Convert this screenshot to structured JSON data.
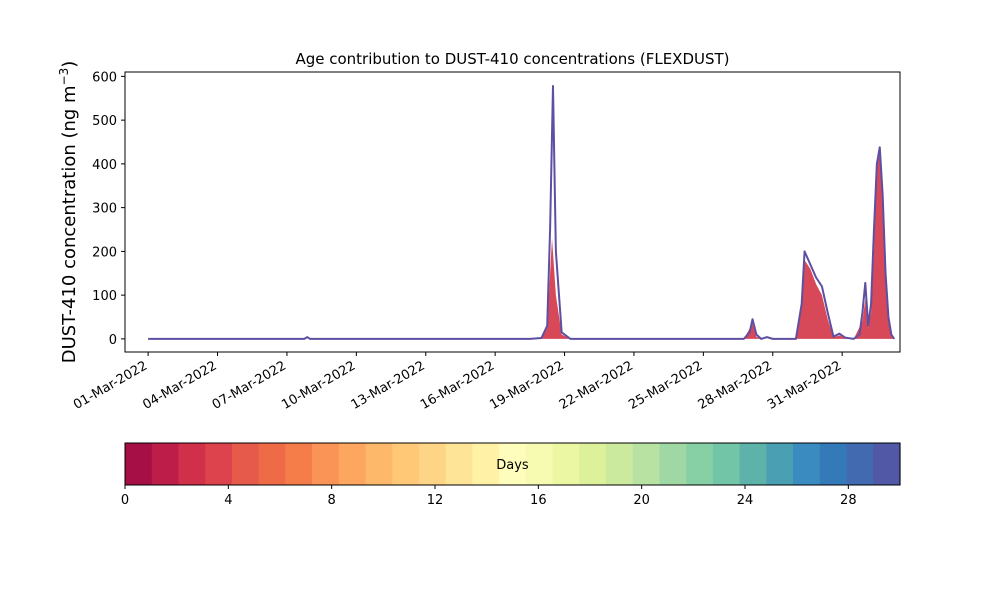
{
  "chart_data": {
    "type": "area",
    "title": "Age contribution to DUST-410 concentrations (FLEXDUST)",
    "ylabel": "DUST-410 concentration (ng m⁻³)",
    "ylabel_main": "DUST-410 concentration (ng m",
    "ylabel_sup": "−3",
    "ylabel_end": ")",
    "xlabel": "",
    "x_range": [
      "2022-02-28T00:00",
      "2022-04-02T12:00"
    ],
    "ylim": [
      -30,
      610
    ],
    "yticks": [
      0,
      100,
      200,
      300,
      400,
      500,
      600
    ],
    "xticks": [
      "2022-03-01",
      "2022-03-04",
      "2022-03-07",
      "2022-03-10",
      "2022-03-13",
      "2022-03-16",
      "2022-03-19",
      "2022-03-22",
      "2022-03-25",
      "2022-03-28",
      "2022-03-31"
    ],
    "xtick_labels": [
      "01-Mar-2022",
      "04-Mar-2022",
      "07-Mar-2022",
      "10-Mar-2022",
      "13-Mar-2022",
      "16-Mar-2022",
      "19-Mar-2022",
      "22-Mar-2022",
      "25-Mar-2022",
      "28-Mar-2022",
      "31-Mar-2022"
    ],
    "grid": false,
    "total_series": {
      "color": "#5e4fa2",
      "points": [
        [
          "2022-03-01T00:00",
          0
        ],
        [
          "2022-03-07T00:00",
          0
        ],
        [
          "2022-03-07T18:00",
          0
        ],
        [
          "2022-03-07T21:00",
          4
        ],
        [
          "2022-03-08T00:00",
          0
        ],
        [
          "2022-03-17T12:00",
          0
        ],
        [
          "2022-03-18T00:00",
          2
        ],
        [
          "2022-03-18T06:00",
          30
        ],
        [
          "2022-03-18T09:00",
          250
        ],
        [
          "2022-03-18T12:00",
          578
        ],
        [
          "2022-03-18T15:00",
          200
        ],
        [
          "2022-03-18T21:00",
          15
        ],
        [
          "2022-03-19T06:00",
          0
        ],
        [
          "2022-03-26T18:00",
          0
        ],
        [
          "2022-03-27T00:00",
          15
        ],
        [
          "2022-03-27T03:00",
          45
        ],
        [
          "2022-03-27T07:00",
          10
        ],
        [
          "2022-03-27T12:00",
          0
        ],
        [
          "2022-03-27T18:00",
          4
        ],
        [
          "2022-03-28T00:00",
          0
        ],
        [
          "2022-03-29T00:00",
          0
        ],
        [
          "2022-03-29T06:00",
          80
        ],
        [
          "2022-03-29T09:00",
          200
        ],
        [
          "2022-03-29T15:00",
          170
        ],
        [
          "2022-03-29T21:00",
          140
        ],
        [
          "2022-03-30T03:00",
          120
        ],
        [
          "2022-03-30T09:00",
          60
        ],
        [
          "2022-03-30T15:00",
          5
        ],
        [
          "2022-03-30T21:00",
          12
        ],
        [
          "2022-03-31T03:00",
          3
        ],
        [
          "2022-03-31T12:00",
          0
        ],
        [
          "2022-03-31T18:00",
          10
        ],
        [
          "2022-03-31T21:00",
          60
        ],
        [
          "2022-04-01T00:00",
          128
        ],
        [
          "2022-04-01T03:00",
          30
        ],
        [
          "2022-04-01T06:00",
          80
        ],
        [
          "2022-04-01T09:00",
          250
        ],
        [
          "2022-04-01T12:00",
          400
        ],
        [
          "2022-04-01T15:00",
          438
        ],
        [
          "2022-04-01T18:00",
          330
        ],
        [
          "2022-04-01T21:00",
          150
        ],
        [
          "2022-04-02T00:00",
          50
        ],
        [
          "2022-04-02T03:00",
          10
        ],
        [
          "2022-04-02T06:00",
          0
        ]
      ]
    },
    "age_fill": {
      "color": "#d53e4f",
      "points": [
        [
          "2022-03-18T00:00",
          0
        ],
        [
          "2022-03-18T06:00",
          25
        ],
        [
          "2022-03-18T09:00",
          150
        ],
        [
          "2022-03-18T11:00",
          230
        ],
        [
          "2022-03-18T15:00",
          100
        ],
        [
          "2022-03-18T21:00",
          10
        ],
        [
          "2022-03-19T06:00",
          0
        ],
        [
          "2022-03-26T18:00",
          0
        ],
        [
          "2022-03-27T03:00",
          35
        ],
        [
          "2022-03-27T07:00",
          5
        ],
        [
          "2022-03-27T12:00",
          0
        ],
        [
          "2022-03-29T00:00",
          0
        ],
        [
          "2022-03-29T06:00",
          70
        ],
        [
          "2022-03-29T09:00",
          180
        ],
        [
          "2022-03-29T15:00",
          160
        ],
        [
          "2022-03-29T21:00",
          125
        ],
        [
          "2022-03-30T03:00",
          100
        ],
        [
          "2022-03-30T09:00",
          45
        ],
        [
          "2022-03-30T15:00",
          3
        ],
        [
          "2022-03-30T21:00",
          8
        ],
        [
          "2022-03-31T03:00",
          2
        ],
        [
          "2022-03-31T12:00",
          0
        ],
        [
          "2022-03-31T21:00",
          40
        ],
        [
          "2022-04-01T00:00",
          90
        ],
        [
          "2022-04-01T03:00",
          25
        ],
        [
          "2022-04-01T06:00",
          60
        ],
        [
          "2022-04-01T09:00",
          200
        ],
        [
          "2022-04-01T12:00",
          400
        ],
        [
          "2022-04-01T15:00",
          420
        ],
        [
          "2022-04-01T18:00",
          300
        ],
        [
          "2022-04-01T21:00",
          130
        ],
        [
          "2022-04-02T00:00",
          40
        ],
        [
          "2022-04-02T03:00",
          8
        ],
        [
          "2022-04-02T06:00",
          0
        ]
      ]
    },
    "colorbar": {
      "label": "Days",
      "range": [
        0,
        30
      ],
      "ticks": [
        0,
        4,
        8,
        12,
        16,
        20,
        24,
        28
      ],
      "colors": [
        "#a50f45",
        "#bd1e49",
        "#d1304a",
        "#dc434d",
        "#e65a4b",
        "#ef6b47",
        "#f57d4a",
        "#f99456",
        "#fca65f",
        "#fdb869",
        "#fec877",
        "#fed586",
        "#fee497",
        "#fff2a7",
        "#fffdbc",
        "#f6fbb1",
        "#ebf7a2",
        "#ddf19b",
        "#cbea9e",
        "#b7e2a2",
        "#9fd8a4",
        "#87cfa4",
        "#72c5a6",
        "#5db3a9",
        "#4aa0b2",
        "#3a8bbf",
        "#3479b8",
        "#426ab0",
        "#5158a6"
      ]
    }
  }
}
